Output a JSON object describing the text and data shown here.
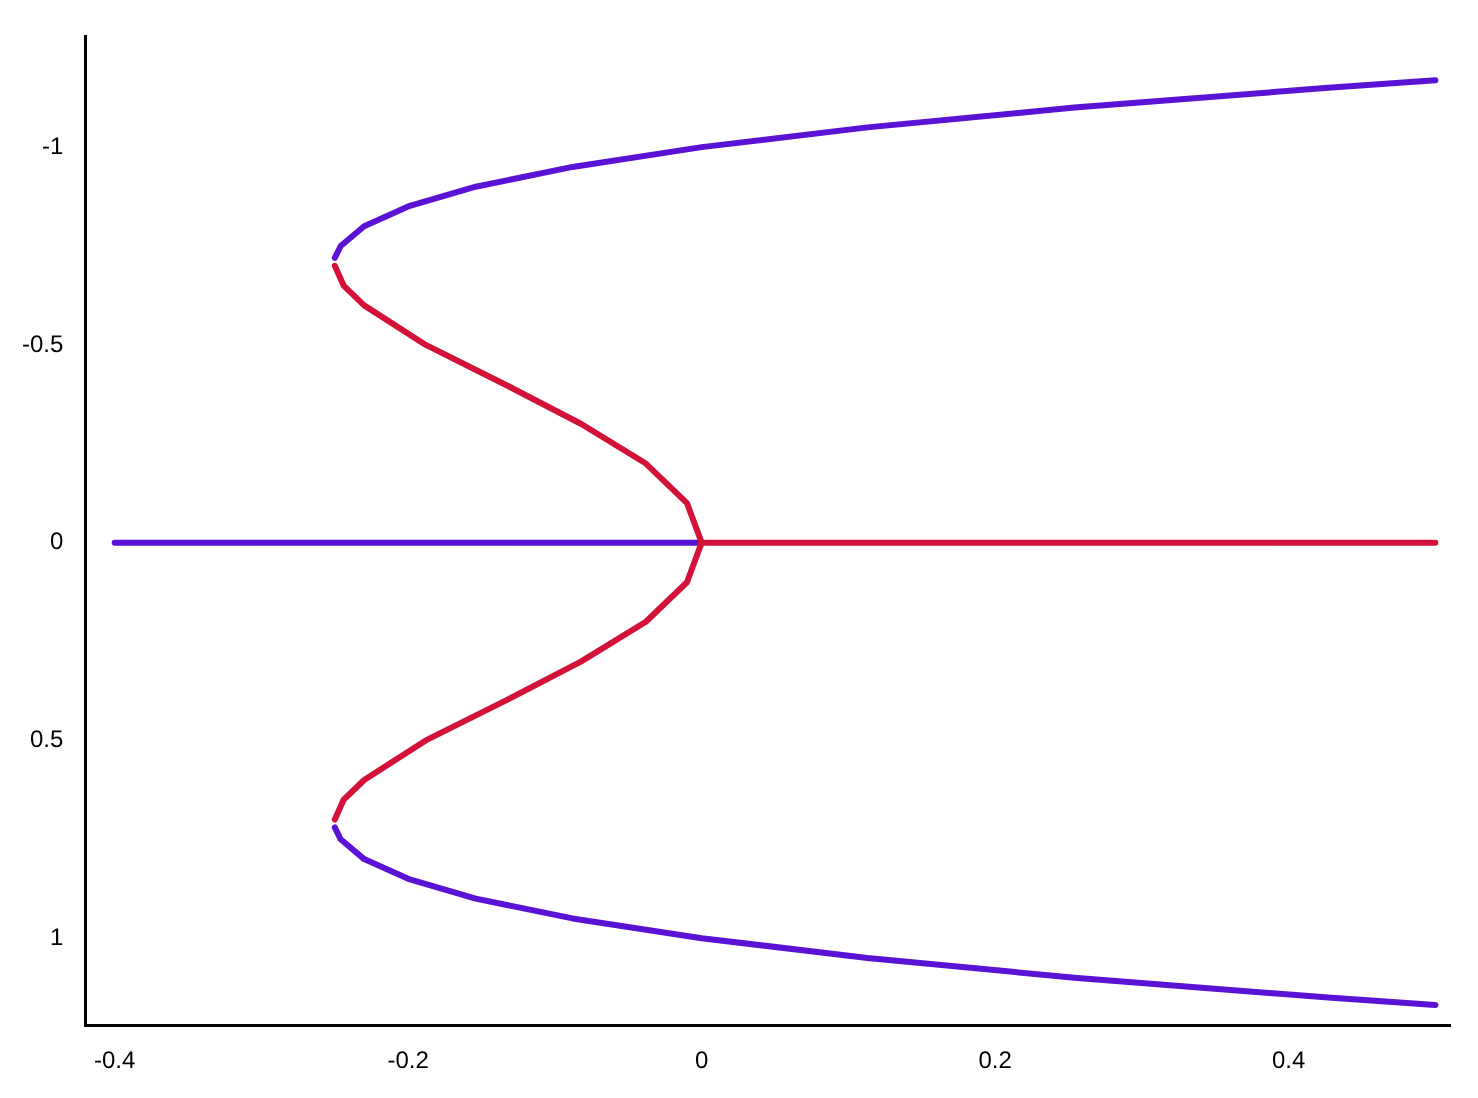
{
  "chart_data": {
    "type": "line",
    "xlim": [
      -0.42,
      0.51
    ],
    "xticks": [
      -0.4,
      -0.2,
      0,
      0.2,
      0.4
    ],
    "ylim": [
      1.22,
      -1.28
    ],
    "yticks": [
      -1,
      -0.5,
      0,
      0.5,
      1
    ],
    "grid": false,
    "legend": false,
    "marker": "none",
    "line_style": "solid",
    "series": [
      {
        "color": "#5a12d4",
        "x": [
          -0.25,
          -0.246,
          -0.23,
          -0.2,
          -0.154,
          -0.088,
          0,
          0.113,
          0.254,
          0.427,
          0.5
        ],
        "values": [
          -0.72,
          -0.75,
          -0.8,
          -0.85,
          -0.9,
          -0.95,
          -1,
          -1.05,
          -1.1,
          -1.15,
          -1.169
        ]
      },
      {
        "color": "#5a12d4",
        "x": [
          -0.25,
          -0.246,
          -0.23,
          -0.2,
          -0.154,
          -0.088,
          0,
          0.113,
          0.254,
          0.427,
          0.5
        ],
        "values": [
          0.72,
          0.75,
          0.8,
          0.85,
          0.9,
          0.95,
          1,
          1.05,
          1.1,
          1.15,
          1.169
        ]
      },
      {
        "color": "#d3123a",
        "x": [
          -0.25,
          -0.244,
          -0.23,
          -0.188,
          -0.134,
          -0.082,
          -0.038,
          -0.01,
          0
        ],
        "values": [
          -0.7,
          -0.65,
          -0.6,
          -0.5,
          -0.4,
          -0.3,
          -0.2,
          -0.1,
          0
        ]
      },
      {
        "color": "#d3123a",
        "x": [
          -0.25,
          -0.244,
          -0.23,
          -0.188,
          -0.134,
          -0.082,
          -0.038,
          -0.01,
          0
        ],
        "values": [
          0.7,
          0.65,
          0.6,
          0.5,
          0.4,
          0.3,
          0.2,
          0.1,
          0
        ]
      },
      {
        "color": "#5a12d4",
        "x": [
          -0.4,
          0
        ],
        "values": [
          0,
          0
        ]
      },
      {
        "color": "#d3123a",
        "x": [
          0,
          0.5
        ],
        "values": [
          0,
          0
        ]
      }
    ]
  }
}
